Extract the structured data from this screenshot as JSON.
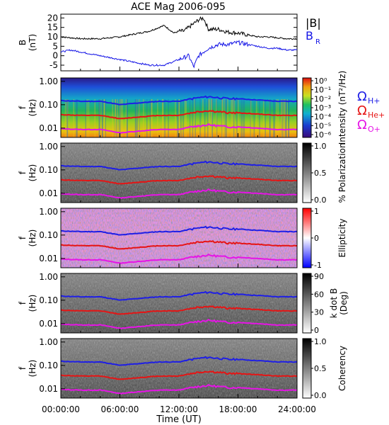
{
  "title": "ACE Mag 2006-095",
  "colors": {
    "b_total": "#000000",
    "b_r": "#1414e6",
    "h_plus": "#1e1ee6",
    "he_plus": "#e61414",
    "o_plus": "#e614e6"
  },
  "chart_data": [
    {
      "type": "line",
      "panel": "magnetic-field",
      "ylabel_lines": [
        "B",
        "(nT)"
      ],
      "ylim": [
        -8,
        22
      ],
      "yticks": [
        "20",
        "15",
        "10",
        "5",
        "0",
        "-5"
      ],
      "legend": [
        "|B|",
        "B_R"
      ],
      "x_hours": [
        0,
        1,
        2,
        3,
        4,
        5,
        6,
        7,
        8,
        9,
        9.5,
        10,
        10.5,
        11,
        11.5,
        12,
        12.5,
        13,
        13.5,
        14,
        14.5,
        15,
        15.5,
        16,
        17,
        18,
        19,
        20,
        21,
        22,
        23,
        24
      ],
      "series": [
        {
          "name": "|B|",
          "values": [
            10,
            9.5,
            9,
            9,
            9,
            9.5,
            10,
            11,
            12,
            13,
            14,
            15,
            16,
            14,
            12,
            13,
            13,
            15,
            17,
            19,
            20,
            14,
            14,
            14,
            12.5,
            12,
            11,
            10,
            10,
            9.5,
            9,
            9
          ]
        },
        {
          "name": "B_R",
          "values": [
            2,
            3,
            2,
            1,
            0,
            -1,
            -2,
            -3,
            -4,
            -5,
            -5,
            -5,
            -5,
            -4,
            -3,
            -2,
            -1,
            0,
            -6,
            0,
            2,
            4,
            5,
            6,
            6,
            7,
            6,
            5,
            4,
            4,
            3,
            3
          ]
        }
      ]
    },
    {
      "type": "heatmap",
      "panel": "power-spectral-intensity",
      "ylabel_lines": [
        "f",
        "(Hz)"
      ],
      "yticks": [
        "1.00",
        "0.10",
        "0.01"
      ],
      "colorbar_label": "Intensity (nT²/Hz)",
      "colorbar_ticks": [
        "10⁰",
        "10⁻¹",
        "10⁻²",
        "10⁻³",
        "10⁻⁴",
        "10⁻⁵",
        "10⁻⁶"
      ]
    },
    {
      "type": "heatmap",
      "panel": "percent-polarization",
      "ylabel_lines": [
        "f",
        "(Hz)"
      ],
      "yticks": [
        "1.00",
        "0.10",
        "0.01"
      ],
      "colorbar_label": "% Polarization",
      "colorbar_ticks": [
        "1.0",
        "0.5",
        "0.0"
      ]
    },
    {
      "type": "heatmap",
      "panel": "ellipticity",
      "ylabel_lines": [
        "f",
        "(Hz)"
      ],
      "yticks": [
        "1.00",
        "0.10",
        "0.01"
      ],
      "colorbar_label": "Ellipticity",
      "colorbar_ticks": [
        "1",
        "0",
        "-1"
      ]
    },
    {
      "type": "heatmap",
      "panel": "k-dot-b",
      "ylabel_lines": [
        "f",
        "(Hz)"
      ],
      "yticks": [
        "1.00",
        "0.10",
        "0.01"
      ],
      "colorbar_label": "k dot B",
      "colorbar_label2": "(Deg)",
      "colorbar_ticks": [
        "90",
        "60",
        "30",
        "0"
      ]
    },
    {
      "type": "heatmap",
      "panel": "coherency",
      "ylabel_lines": [
        "f",
        "(Hz)"
      ],
      "yticks": [
        "1.00",
        "0.10",
        "0.01"
      ],
      "colorbar_label": "Coherency",
      "colorbar_ticks": [
        "1.0",
        "0.5",
        "0.0"
      ]
    }
  ],
  "gyrofrequency_legend": [
    {
      "symbol": "Ω",
      "sub": "H+"
    },
    {
      "symbol": "Ω",
      "sub": "He+"
    },
    {
      "symbol": "Ω",
      "sub": "O+"
    }
  ],
  "gyro_curves_hz": {
    "x_hours": [
      0,
      2,
      4,
      6,
      8,
      10,
      12,
      14,
      15,
      16,
      17,
      18,
      20,
      22,
      24
    ],
    "h_plus": [
      0.15,
      0.14,
      0.14,
      0.1,
      0.12,
      0.14,
      0.14,
      0.2,
      0.22,
      0.2,
      0.18,
      0.18,
      0.16,
      0.14,
      0.14
    ]
  },
  "x_axis": {
    "label": "Time (UT)",
    "ticks": [
      "00:00:00",
      "06:00:00",
      "12:00:00",
      "18:00:00",
      "24:00:00"
    ]
  }
}
